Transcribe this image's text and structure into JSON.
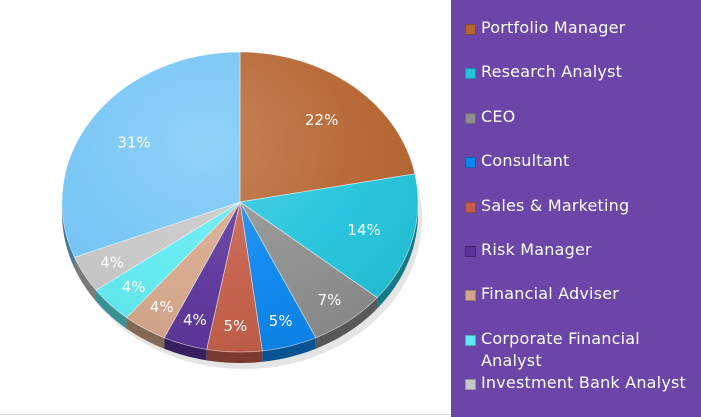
{
  "chart_data": {
    "type": "pie",
    "categories": [
      "Portfolio Manager",
      "Research Analyst",
      "CEO",
      "Consultant",
      "Sales & Marketing",
      "Risk Manager",
      "Financial Adviser",
      "Corporate Financial Analyst",
      "Investment Bank Analyst"
    ],
    "values": [
      22,
      14,
      7,
      5,
      5,
      4,
      4,
      4,
      4
    ],
    "data_labels": [
      "22%",
      "14%",
      "7%",
      "5%",
      "5%",
      "4%",
      "4%",
      "4%",
      "4%"
    ],
    "other_slice": {
      "value": 31,
      "label": "31%"
    },
    "colors": [
      "#b5632f",
      "#22c4dc",
      "#8e8e8e",
      "#0a86ef",
      "#c45e48",
      "#5b349a",
      "#d5a78a",
      "#5eeaf0",
      "#c6c6c6"
    ],
    "other_color": "#72c4f6",
    "legend_position": "right",
    "style": "3d"
  },
  "legend": {
    "background": "#6b45a8",
    "items": [
      "Portfolio Manager",
      "Research Analyst",
      "CEO",
      "Consultant",
      "Sales & Marketing",
      "Risk Manager",
      "Financial Adviser",
      "Corporate Financial Analyst",
      "Investment Bank Analyst"
    ]
  }
}
